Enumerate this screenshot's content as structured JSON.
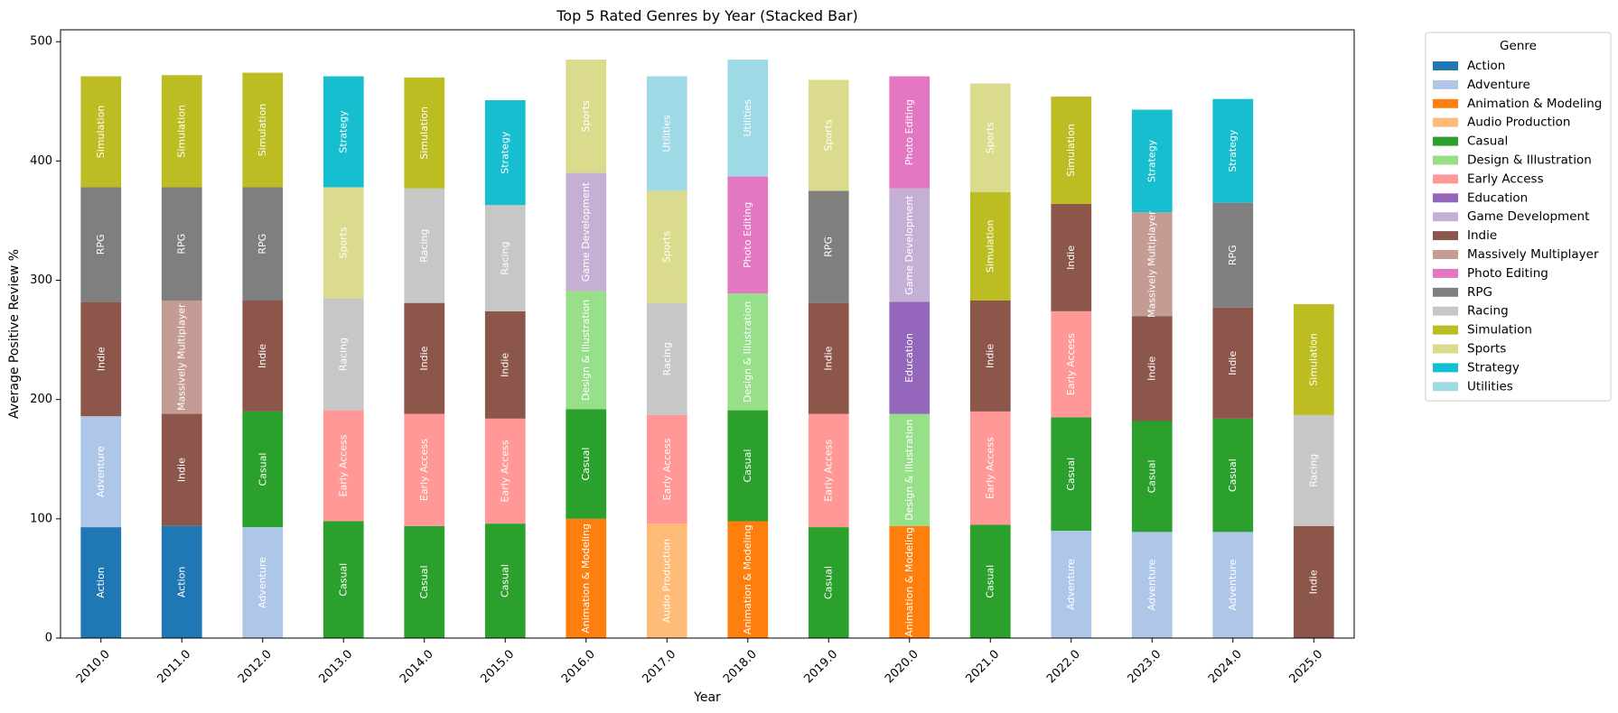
{
  "chart_data": {
    "type": "bar",
    "stacked": true,
    "title": "Top 5 Rated Genres by Year (Stacked Bar)",
    "xlabel": "Year",
    "ylabel": "Average Positive Review %",
    "ylim": [
      0,
      510
    ],
    "yticks": [
      0,
      100,
      200,
      300,
      400,
      500
    ],
    "grid": false,
    "legend_title": "Genre",
    "legend_placement": "outside-right",
    "genres": [
      {
        "name": "Action",
        "color": "#1f77b4"
      },
      {
        "name": "Adventure",
        "color": "#aec7e8"
      },
      {
        "name": "Animation & Modeling",
        "color": "#ff7f0e"
      },
      {
        "name": "Audio Production",
        "color": "#ffbb78"
      },
      {
        "name": "Casual",
        "color": "#2ca02c"
      },
      {
        "name": "Design & Illustration",
        "color": "#98df8a"
      },
      {
        "name": "Early Access",
        "color": "#ff9896"
      },
      {
        "name": "Education",
        "color": "#9467bd"
      },
      {
        "name": "Game Development",
        "color": "#c5b0d5"
      },
      {
        "name": "Indie",
        "color": "#8c564b"
      },
      {
        "name": "Massively Multiplayer",
        "color": "#c49c94"
      },
      {
        "name": "Photo Editing",
        "color": "#e377c2"
      },
      {
        "name": "RPG",
        "color": "#7f7f7f"
      },
      {
        "name": "Racing",
        "color": "#c7c7c7"
      },
      {
        "name": "Simulation",
        "color": "#bcbd22"
      },
      {
        "name": "Sports",
        "color": "#dbdb8d"
      },
      {
        "name": "Strategy",
        "color": "#17becf"
      },
      {
        "name": "Utilities",
        "color": "#9edae5"
      }
    ],
    "categories": [
      "2010.0",
      "2011.0",
      "2012.0",
      "2013.0",
      "2014.0",
      "2015.0",
      "2016.0",
      "2017.0",
      "2018.0",
      "2019.0",
      "2020.0",
      "2021.0",
      "2022.0",
      "2023.0",
      "2024.0",
      "2025.0"
    ],
    "stacks": [
      [
        {
          "genre": "Action",
          "value": 93
        },
        {
          "genre": "Adventure",
          "value": 93
        },
        {
          "genre": "Indie",
          "value": 96
        },
        {
          "genre": "RPG",
          "value": 96
        },
        {
          "genre": "Simulation",
          "value": 93
        }
      ],
      [
        {
          "genre": "Action",
          "value": 94
        },
        {
          "genre": "Indie",
          "value": 94
        },
        {
          "genre": "Massively Multiplayer",
          "value": 95
        },
        {
          "genre": "RPG",
          "value": 95
        },
        {
          "genre": "Simulation",
          "value": 94
        }
      ],
      [
        {
          "genre": "Adventure",
          "value": 93
        },
        {
          "genre": "Casual",
          "value": 97
        },
        {
          "genre": "Indie",
          "value": 93
        },
        {
          "genre": "RPG",
          "value": 95
        },
        {
          "genre": "Simulation",
          "value": 96
        }
      ],
      [
        {
          "genre": "Casual",
          "value": 98
        },
        {
          "genre": "Early Access",
          "value": 93
        },
        {
          "genre": "Racing",
          "value": 94
        },
        {
          "genre": "Sports",
          "value": 93
        },
        {
          "genre": "Strategy",
          "value": 93
        }
      ],
      [
        {
          "genre": "Casual",
          "value": 94
        },
        {
          "genre": "Early Access",
          "value": 94
        },
        {
          "genre": "Indie",
          "value": 93
        },
        {
          "genre": "Racing",
          "value": 96
        },
        {
          "genre": "Simulation",
          "value": 93
        }
      ],
      [
        {
          "genre": "Casual",
          "value": 96
        },
        {
          "genre": "Early Access",
          "value": 88
        },
        {
          "genre": "Indie",
          "value": 90
        },
        {
          "genre": "Racing",
          "value": 89
        },
        {
          "genre": "Strategy",
          "value": 88
        }
      ],
      [
        {
          "genre": "Animation & Modeling",
          "value": 100
        },
        {
          "genre": "Casual",
          "value": 92
        },
        {
          "genre": "Design & Illustration",
          "value": 99
        },
        {
          "genre": "Game Development",
          "value": 99
        },
        {
          "genre": "Sports",
          "value": 95
        }
      ],
      [
        {
          "genre": "Audio Production",
          "value": 96
        },
        {
          "genre": "Early Access",
          "value": 91
        },
        {
          "genre": "Racing",
          "value": 94
        },
        {
          "genre": "Sports",
          "value": 94
        },
        {
          "genre": "Utilities",
          "value": 96
        }
      ],
      [
        {
          "genre": "Animation & Modeling",
          "value": 98
        },
        {
          "genre": "Casual",
          "value": 93
        },
        {
          "genre": "Design & Illustration",
          "value": 98
        },
        {
          "genre": "Photo Editing",
          "value": 98
        },
        {
          "genre": "Utilities",
          "value": 98
        }
      ],
      [
        {
          "genre": "Casual",
          "value": 93
        },
        {
          "genre": "Early Access",
          "value": 95
        },
        {
          "genre": "Indie",
          "value": 93
        },
        {
          "genre": "RPG",
          "value": 94
        },
        {
          "genre": "Sports",
          "value": 93
        }
      ],
      [
        {
          "genre": "Animation & Modeling",
          "value": 94
        },
        {
          "genre": "Design & Illustration",
          "value": 94
        },
        {
          "genre": "Education",
          "value": 94
        },
        {
          "genre": "Game Development",
          "value": 95
        },
        {
          "genre": "Photo Editing",
          "value": 94
        }
      ],
      [
        {
          "genre": "Casual",
          "value": 95
        },
        {
          "genre": "Early Access",
          "value": 95
        },
        {
          "genre": "Indie",
          "value": 93
        },
        {
          "genre": "Simulation",
          "value": 91
        },
        {
          "genre": "Sports",
          "value": 91
        }
      ],
      [
        {
          "genre": "Adventure",
          "value": 90
        },
        {
          "genre": "Casual",
          "value": 95
        },
        {
          "genre": "Early Access",
          "value": 89
        },
        {
          "genre": "Indie",
          "value": 90
        },
        {
          "genre": "Simulation",
          "value": 90
        }
      ],
      [
        {
          "genre": "Adventure",
          "value": 89
        },
        {
          "genre": "Casual",
          "value": 93
        },
        {
          "genre": "Indie",
          "value": 88
        },
        {
          "genre": "Massively Multiplayer",
          "value": 87
        },
        {
          "genre": "Strategy",
          "value": 86
        }
      ],
      [
        {
          "genre": "Adventure",
          "value": 89
        },
        {
          "genre": "Casual",
          "value": 95
        },
        {
          "genre": "Indie",
          "value": 93
        },
        {
          "genre": "RPG",
          "value": 88
        },
        {
          "genre": "Strategy",
          "value": 87
        }
      ],
      [
        {
          "genre": "Indie",
          "value": 94
        },
        {
          "genre": "Racing",
          "value": 93
        },
        {
          "genre": "Simulation",
          "value": 93
        }
      ]
    ]
  }
}
